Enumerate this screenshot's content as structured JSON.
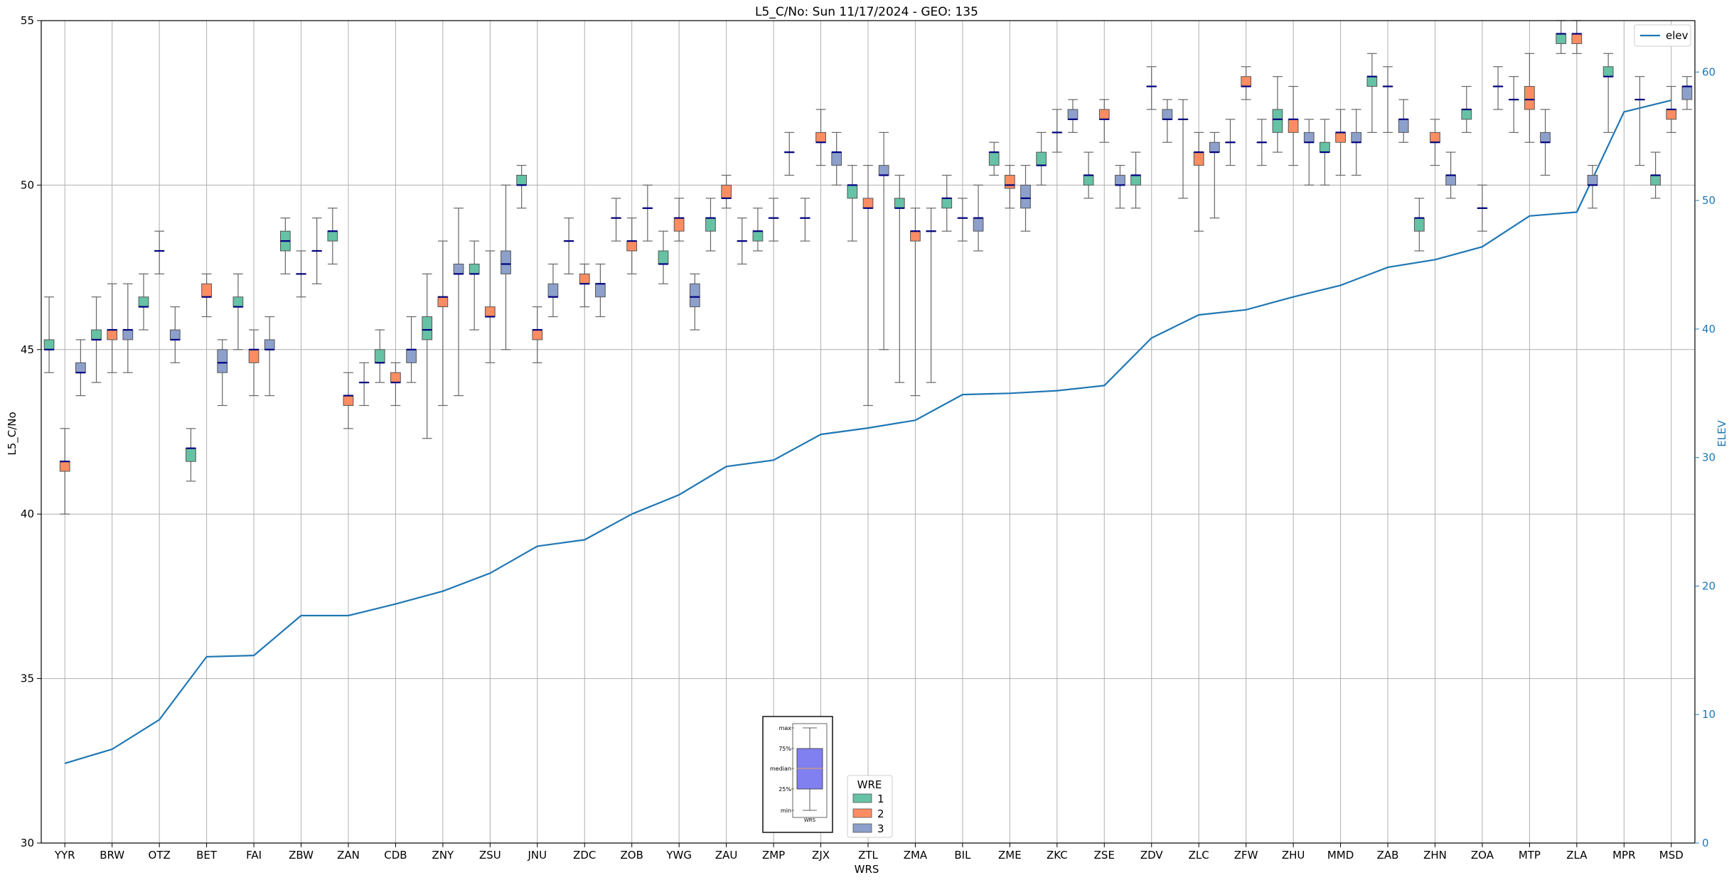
{
  "chart_data": {
    "type": "box",
    "title": "L5_C/No: Sun 11/17/2024 - GEO: 135",
    "xlabel": "WRS",
    "ylabel": "L5_C/No",
    "y2label": "ELEV",
    "ylim": [
      30,
      55
    ],
    "y2lim": [
      0,
      64
    ],
    "yticks": [
      30,
      35,
      40,
      45,
      50,
      55
    ],
    "y2ticks": [
      0,
      10,
      20,
      30,
      40,
      50,
      60
    ],
    "grid": true,
    "categories": [
      "YYR",
      "BRW",
      "OTZ",
      "BET",
      "FAI",
      "ZBW",
      "ZAN",
      "CDB",
      "ZNY",
      "ZSU",
      "JNU",
      "ZDC",
      "ZOB",
      "YWG",
      "ZAU",
      "ZMP",
      "ZJX",
      "ZTL",
      "ZMA",
      "BIL",
      "ZME",
      "ZKC",
      "ZSE",
      "ZDV",
      "ZLC",
      "ZFW",
      "ZHU",
      "MMD",
      "ZAB",
      "ZHN",
      "ZOA",
      "MTP",
      "ZLA",
      "MPR",
      "MSD"
    ],
    "wre_colors": {
      "1": "#66c2a5",
      "2": "#fc8d62",
      "3": "#8da0cb"
    },
    "legend_wre": {
      "title": "WRE",
      "items": [
        {
          "label": "1",
          "color": "#66c2a5"
        },
        {
          "label": "2",
          "color": "#fc8d62"
        },
        {
          "label": "3",
          "color": "#8da0cb"
        }
      ]
    },
    "legend_elev": {
      "label": "elev",
      "color": "#1f77b4"
    },
    "key_labels": [
      "max",
      "75%",
      "median",
      "25%",
      "min",
      "WRS"
    ],
    "elev_series": {
      "name": "elev",
      "color": "#1f77b4",
      "values": [
        6.2,
        7.3,
        9.6,
        14.5,
        14.6,
        17.7,
        17.7,
        18.6,
        19.6,
        21.0,
        23.1,
        23.6,
        25.6,
        27.1,
        29.3,
        29.8,
        31.8,
        32.3,
        32.9,
        34.9,
        35.0,
        35.2,
        35.6,
        39.3,
        41.1,
        41.5,
        42.5,
        43.4,
        44.8,
        45.4,
        46.4,
        48.8,
        49.1,
        56.9,
        57.8
      ]
    },
    "boxes": [
      {
        "wrs": "YYR",
        "wre": 1,
        "min": 44.3,
        "q1": 45.0,
        "med": 45.0,
        "q3": 45.3,
        "max": 46.6
      },
      {
        "wrs": "YYR",
        "wre": 2,
        "min": 40.0,
        "q1": 41.3,
        "med": 41.6,
        "q3": 41.6,
        "max": 42.6
      },
      {
        "wrs": "YYR",
        "wre": 3,
        "min": 43.6,
        "q1": 44.3,
        "med": 44.3,
        "q3": 44.6,
        "max": 45.3
      },
      {
        "wrs": "BRW",
        "wre": 1,
        "min": 44.0,
        "q1": 45.3,
        "med": 45.3,
        "q3": 45.6,
        "max": 46.6
      },
      {
        "wrs": "BRW",
        "wre": 2,
        "min": 44.3,
        "q1": 45.3,
        "med": 45.6,
        "q3": 45.6,
        "max": 47.0
      },
      {
        "wrs": "BRW",
        "wre": 3,
        "min": 44.3,
        "q1": 45.3,
        "med": 45.6,
        "q3": 45.6,
        "max": 47.0
      },
      {
        "wrs": "OTZ",
        "wre": 1,
        "min": 45.6,
        "q1": 46.3,
        "med": 46.3,
        "q3": 46.6,
        "max": 47.3
      },
      {
        "wrs": "OTZ",
        "wre": 2,
        "min": 47.3,
        "q1": 48.0,
        "med": 48.0,
        "q3": 48.0,
        "max": 48.6
      },
      {
        "wrs": "OTZ",
        "wre": 3,
        "min": 44.6,
        "q1": 45.3,
        "med": 45.3,
        "q3": 45.6,
        "max": 46.3
      },
      {
        "wrs": "BET",
        "wre": 1,
        "min": 41.0,
        "q1": 41.6,
        "med": 42.0,
        "q3": 42.0,
        "max": 42.6
      },
      {
        "wrs": "BET",
        "wre": 2,
        "min": 46.0,
        "q1": 46.6,
        "med": 46.6,
        "q3": 47.0,
        "max": 47.3
      },
      {
        "wrs": "BET",
        "wre": 3,
        "min": 43.3,
        "q1": 44.3,
        "med": 44.6,
        "q3": 45.0,
        "max": 45.3
      },
      {
        "wrs": "FAI",
        "wre": 1,
        "min": 45.0,
        "q1": 46.3,
        "med": 46.3,
        "q3": 46.6,
        "max": 47.3
      },
      {
        "wrs": "FAI",
        "wre": 2,
        "min": 43.6,
        "q1": 44.6,
        "med": 45.0,
        "q3": 45.0,
        "max": 45.6
      },
      {
        "wrs": "FAI",
        "wre": 3,
        "min": 43.6,
        "q1": 45.0,
        "med": 45.0,
        "q3": 45.3,
        "max": 46.0
      },
      {
        "wrs": "ZBW",
        "wre": 1,
        "min": 47.3,
        "q1": 48.0,
        "med": 48.3,
        "q3": 48.6,
        "max": 49.0
      },
      {
        "wrs": "ZBW",
        "wre": 2,
        "min": 46.6,
        "q1": 47.3,
        "med": 47.3,
        "q3": 47.3,
        "max": 48.0
      },
      {
        "wrs": "ZBW",
        "wre": 3,
        "min": 47.0,
        "q1": 48.0,
        "med": 48.0,
        "q3": 48.0,
        "max": 49.0
      },
      {
        "wrs": "ZAN",
        "wre": 1,
        "min": 47.6,
        "q1": 48.3,
        "med": 48.6,
        "q3": 48.6,
        "max": 49.3
      },
      {
        "wrs": "ZAN",
        "wre": 2,
        "min": 42.6,
        "q1": 43.3,
        "med": 43.6,
        "q3": 43.6,
        "max": 44.3
      },
      {
        "wrs": "ZAN",
        "wre": 3,
        "min": 43.3,
        "q1": 44.0,
        "med": 44.0,
        "q3": 44.0,
        "max": 44.6
      },
      {
        "wrs": "CDB",
        "wre": 1,
        "min": 44.0,
        "q1": 44.6,
        "med": 44.6,
        "q3": 45.0,
        "max": 45.6
      },
      {
        "wrs": "CDB",
        "wre": 2,
        "min": 43.3,
        "q1": 44.0,
        "med": 44.0,
        "q3": 44.3,
        "max": 44.6
      },
      {
        "wrs": "CDB",
        "wre": 3,
        "min": 44.0,
        "q1": 44.6,
        "med": 45.0,
        "q3": 45.0,
        "max": 46.0
      },
      {
        "wrs": "ZNY",
        "wre": 1,
        "min": 42.3,
        "q1": 45.3,
        "med": 45.6,
        "q3": 46.0,
        "max": 47.3
      },
      {
        "wrs": "ZNY",
        "wre": 2,
        "min": 43.3,
        "q1": 46.3,
        "med": 46.6,
        "q3": 46.6,
        "max": 48.3
      },
      {
        "wrs": "ZNY",
        "wre": 3,
        "min": 43.6,
        "q1": 47.3,
        "med": 47.3,
        "q3": 47.6,
        "max": 49.3
      },
      {
        "wrs": "ZSU",
        "wre": 1,
        "min": 45.6,
        "q1": 47.3,
        "med": 47.3,
        "q3": 47.6,
        "max": 48.3
      },
      {
        "wrs": "ZSU",
        "wre": 2,
        "min": 44.6,
        "q1": 46.0,
        "med": 46.0,
        "q3": 46.3,
        "max": 48.0
      },
      {
        "wrs": "ZSU",
        "wre": 3,
        "min": 45.0,
        "q1": 47.3,
        "med": 47.6,
        "q3": 48.0,
        "max": 50.0
      },
      {
        "wrs": "JNU",
        "wre": 1,
        "min": 49.3,
        "q1": 50.0,
        "med": 50.0,
        "q3": 50.3,
        "max": 50.6
      },
      {
        "wrs": "JNU",
        "wre": 2,
        "min": 44.6,
        "q1": 45.3,
        "med": 45.6,
        "q3": 45.6,
        "max": 46.3
      },
      {
        "wrs": "JNU",
        "wre": 3,
        "min": 46.0,
        "q1": 46.6,
        "med": 46.6,
        "q3": 47.0,
        "max": 47.6
      },
      {
        "wrs": "ZDC",
        "wre": 1,
        "min": 47.3,
        "q1": 48.3,
        "med": 48.3,
        "q3": 48.3,
        "max": 49.0
      },
      {
        "wrs": "ZDC",
        "wre": 2,
        "min": 46.3,
        "q1": 47.0,
        "med": 47.0,
        "q3": 47.3,
        "max": 47.6
      },
      {
        "wrs": "ZDC",
        "wre": 3,
        "min": 46.0,
        "q1": 46.6,
        "med": 47.0,
        "q3": 47.0,
        "max": 47.6
      },
      {
        "wrs": "ZOB",
        "wre": 1,
        "min": 48.3,
        "q1": 49.0,
        "med": 49.0,
        "q3": 49.0,
        "max": 49.6
      },
      {
        "wrs": "ZOB",
        "wre": 2,
        "min": 47.3,
        "q1": 48.0,
        "med": 48.3,
        "q3": 48.3,
        "max": 49.0
      },
      {
        "wrs": "ZOB",
        "wre": 3,
        "min": 48.3,
        "q1": 49.3,
        "med": 49.3,
        "q3": 49.3,
        "max": 50.0
      },
      {
        "wrs": "YWG",
        "wre": 1,
        "min": 47.0,
        "q1": 47.6,
        "med": 47.6,
        "q3": 48.0,
        "max": 48.6
      },
      {
        "wrs": "YWG",
        "wre": 2,
        "min": 48.3,
        "q1": 48.6,
        "med": 49.0,
        "q3": 49.0,
        "max": 49.6
      },
      {
        "wrs": "YWG",
        "wre": 3,
        "min": 45.6,
        "q1": 46.3,
        "med": 46.6,
        "q3": 47.0,
        "max": 47.3
      },
      {
        "wrs": "ZAU",
        "wre": 1,
        "min": 48.0,
        "q1": 48.6,
        "med": 49.0,
        "q3": 49.0,
        "max": 49.6
      },
      {
        "wrs": "ZAU",
        "wre": 2,
        "min": 49.3,
        "q1": 49.6,
        "med": 49.6,
        "q3": 50.0,
        "max": 50.3
      },
      {
        "wrs": "ZAU",
        "wre": 3,
        "min": 47.6,
        "q1": 48.3,
        "med": 48.3,
        "q3": 48.3,
        "max": 49.0
      },
      {
        "wrs": "ZMP",
        "wre": 1,
        "min": 48.0,
        "q1": 48.3,
        "med": 48.6,
        "q3": 48.6,
        "max": 49.3
      },
      {
        "wrs": "ZMP",
        "wre": 2,
        "min": 48.3,
        "q1": 49.0,
        "med": 49.0,
        "q3": 49.0,
        "max": 49.6
      },
      {
        "wrs": "ZMP",
        "wre": 3,
        "min": 50.3,
        "q1": 51.0,
        "med": 51.0,
        "q3": 51.0,
        "max": 51.6
      },
      {
        "wrs": "ZJX",
        "wre": 1,
        "min": 48.3,
        "q1": 49.0,
        "med": 49.0,
        "q3": 49.0,
        "max": 49.6
      },
      {
        "wrs": "ZJX",
        "wre": 2,
        "min": 50.6,
        "q1": 51.3,
        "med": 51.3,
        "q3": 51.6,
        "max": 52.3
      },
      {
        "wrs": "ZJX",
        "wre": 3,
        "min": 50.0,
        "q1": 50.6,
        "med": 51.0,
        "q3": 51.0,
        "max": 51.6
      },
      {
        "wrs": "ZTL",
        "wre": 1,
        "min": 48.3,
        "q1": 49.6,
        "med": 50.0,
        "q3": 50.0,
        "max": 50.6
      },
      {
        "wrs": "ZTL",
        "wre": 2,
        "min": 43.3,
        "q1": 49.3,
        "med": 49.3,
        "q3": 49.6,
        "max": 50.6
      },
      {
        "wrs": "ZTL",
        "wre": 3,
        "min": 45.0,
        "q1": 50.3,
        "med": 50.3,
        "q3": 50.6,
        "max": 51.6
      },
      {
        "wrs": "ZMA",
        "wre": 1,
        "min": 44.0,
        "q1": 49.3,
        "med": 49.3,
        "q3": 49.6,
        "max": 50.3
      },
      {
        "wrs": "ZMA",
        "wre": 2,
        "min": 43.6,
        "q1": 48.3,
        "med": 48.6,
        "q3": 48.6,
        "max": 49.3
      },
      {
        "wrs": "ZMA",
        "wre": 3,
        "min": 44.0,
        "q1": 48.6,
        "med": 48.6,
        "q3": 48.6,
        "max": 49.3
      },
      {
        "wrs": "BIL",
        "wre": 1,
        "min": 48.6,
        "q1": 49.3,
        "med": 49.6,
        "q3": 49.6,
        "max": 50.3
      },
      {
        "wrs": "BIL",
        "wre": 2,
        "min": 48.3,
        "q1": 49.0,
        "med": 49.0,
        "q3": 49.0,
        "max": 49.6
      },
      {
        "wrs": "BIL",
        "wre": 3,
        "min": 48.0,
        "q1": 48.6,
        "med": 49.0,
        "q3": 49.0,
        "max": 50.0
      },
      {
        "wrs": "ZME",
        "wre": 1,
        "min": 50.3,
        "q1": 50.6,
        "med": 51.0,
        "q3": 51.0,
        "max": 51.3
      },
      {
        "wrs": "ZME",
        "wre": 2,
        "min": 49.3,
        "q1": 49.9,
        "med": 50.0,
        "q3": 50.3,
        "max": 50.6
      },
      {
        "wrs": "ZME",
        "wre": 3,
        "min": 48.6,
        "q1": 49.3,
        "med": 49.6,
        "q3": 50.0,
        "max": 50.6
      },
      {
        "wrs": "ZKC",
        "wre": 1,
        "min": 50.0,
        "q1": 50.6,
        "med": 50.6,
        "q3": 51.0,
        "max": 51.6
      },
      {
        "wrs": "ZKC",
        "wre": 2,
        "min": 51.0,
        "q1": 51.6,
        "med": 51.6,
        "q3": 51.6,
        "max": 52.3
      },
      {
        "wrs": "ZKC",
        "wre": 3,
        "min": 51.6,
        "q1": 52.0,
        "med": 52.0,
        "q3": 52.3,
        "max": 52.6
      },
      {
        "wrs": "ZSE",
        "wre": 1,
        "min": 49.6,
        "q1": 50.0,
        "med": 50.3,
        "q3": 50.3,
        "max": 51.0
      },
      {
        "wrs": "ZSE",
        "wre": 2,
        "min": 51.3,
        "q1": 52.0,
        "med": 52.0,
        "q3": 52.3,
        "max": 52.6
      },
      {
        "wrs": "ZSE",
        "wre": 3,
        "min": 49.3,
        "q1": 50.0,
        "med": 50.0,
        "q3": 50.3,
        "max": 50.6
      },
      {
        "wrs": "ZDV",
        "wre": 1,
        "min": 49.3,
        "q1": 50.0,
        "med": 50.3,
        "q3": 50.3,
        "max": 51.0
      },
      {
        "wrs": "ZDV",
        "wre": 2,
        "min": 52.3,
        "q1": 53.0,
        "med": 53.0,
        "q3": 53.0,
        "max": 53.6
      },
      {
        "wrs": "ZDV",
        "wre": 3,
        "min": 51.3,
        "q1": 52.0,
        "med": 52.0,
        "q3": 52.3,
        "max": 52.6
      },
      {
        "wrs": "ZLC",
        "wre": 1,
        "min": 49.6,
        "q1": 52.0,
        "med": 52.0,
        "q3": 52.0,
        "max": 52.6
      },
      {
        "wrs": "ZLC",
        "wre": 2,
        "min": 48.6,
        "q1": 50.6,
        "med": 51.0,
        "q3": 51.0,
        "max": 51.6
      },
      {
        "wrs": "ZLC",
        "wre": 3,
        "min": 49.0,
        "q1": 51.0,
        "med": 51.0,
        "q3": 51.3,
        "max": 51.6
      },
      {
        "wrs": "ZFW",
        "wre": 1,
        "min": 50.6,
        "q1": 51.3,
        "med": 51.3,
        "q3": 51.3,
        "max": 52.0
      },
      {
        "wrs": "ZFW",
        "wre": 2,
        "min": 52.6,
        "q1": 53.0,
        "med": 53.0,
        "q3": 53.3,
        "max": 53.6
      },
      {
        "wrs": "ZFW",
        "wre": 3,
        "min": 50.6,
        "q1": 51.3,
        "med": 51.3,
        "q3": 51.3,
        "max": 52.0
      },
      {
        "wrs": "ZHU",
        "wre": 1,
        "min": 51.0,
        "q1": 51.6,
        "med": 52.0,
        "q3": 52.3,
        "max": 53.3
      },
      {
        "wrs": "ZHU",
        "wre": 2,
        "min": 50.6,
        "q1": 51.6,
        "med": 52.0,
        "q3": 52.0,
        "max": 53.0
      },
      {
        "wrs": "ZHU",
        "wre": 3,
        "min": 50.0,
        "q1": 51.3,
        "med": 51.3,
        "q3": 51.6,
        "max": 52.0
      },
      {
        "wrs": "MMD",
        "wre": 1,
        "min": 50.0,
        "q1": 51.0,
        "med": 51.0,
        "q3": 51.3,
        "max": 52.0
      },
      {
        "wrs": "MMD",
        "wre": 2,
        "min": 50.3,
        "q1": 51.3,
        "med": 51.6,
        "q3": 51.6,
        "max": 52.3
      },
      {
        "wrs": "MMD",
        "wre": 3,
        "min": 50.3,
        "q1": 51.3,
        "med": 51.3,
        "q3": 51.6,
        "max": 52.3
      },
      {
        "wrs": "ZAB",
        "wre": 1,
        "min": 51.6,
        "q1": 53.0,
        "med": 53.3,
        "q3": 53.3,
        "max": 54.0
      },
      {
        "wrs": "ZAB",
        "wre": 2,
        "min": 51.6,
        "q1": 53.0,
        "med": 53.0,
        "q3": 53.0,
        "max": 53.6
      },
      {
        "wrs": "ZAB",
        "wre": 3,
        "min": 51.3,
        "q1": 51.6,
        "med": 52.0,
        "q3": 52.0,
        "max": 52.6
      },
      {
        "wrs": "ZHN",
        "wre": 1,
        "min": 48.0,
        "q1": 48.6,
        "med": 49.0,
        "q3": 49.0,
        "max": 49.6
      },
      {
        "wrs": "ZHN",
        "wre": 2,
        "min": 50.6,
        "q1": 51.3,
        "med": 51.3,
        "q3": 51.6,
        "max": 52.0
      },
      {
        "wrs": "ZHN",
        "wre": 3,
        "min": 49.6,
        "q1": 50.0,
        "med": 50.3,
        "q3": 50.3,
        "max": 51.0
      },
      {
        "wrs": "ZOA",
        "wre": 1,
        "min": 51.6,
        "q1": 52.0,
        "med": 52.3,
        "q3": 52.3,
        "max": 53.0
      },
      {
        "wrs": "ZOA",
        "wre": 2,
        "min": 48.6,
        "q1": 49.3,
        "med": 49.3,
        "q3": 49.3,
        "max": 50.0
      },
      {
        "wrs": "ZOA",
        "wre": 3,
        "min": 52.3,
        "q1": 53.0,
        "med": 53.0,
        "q3": 53.0,
        "max": 53.6
      },
      {
        "wrs": "MTP",
        "wre": 1,
        "min": 51.6,
        "q1": 52.6,
        "med": 52.6,
        "q3": 52.6,
        "max": 53.3
      },
      {
        "wrs": "MTP",
        "wre": 2,
        "min": 51.3,
        "q1": 52.3,
        "med": 52.6,
        "q3": 53.0,
        "max": 54.0
      },
      {
        "wrs": "MTP",
        "wre": 3,
        "min": 50.3,
        "q1": 51.3,
        "med": 51.3,
        "q3": 51.6,
        "max": 52.3
      },
      {
        "wrs": "ZLA",
        "wre": 1,
        "min": 54.0,
        "q1": 54.3,
        "med": 54.6,
        "q3": 54.6,
        "max": 55.0
      },
      {
        "wrs": "ZLA",
        "wre": 2,
        "min": 54.0,
        "q1": 54.3,
        "med": 54.6,
        "q3": 54.6,
        "max": 55.0
      },
      {
        "wrs": "ZLA",
        "wre": 3,
        "min": 49.3,
        "q1": 50.0,
        "med": 50.0,
        "q3": 50.3,
        "max": 50.6
      },
      {
        "wrs": "MPR",
        "wre": 1,
        "min": 51.6,
        "q1": 53.3,
        "med": 53.3,
        "q3": 53.6,
        "max": 54.0
      },
      {
        "wrs": "MPR",
        "wre": 3,
        "min": 50.6,
        "q1": 52.6,
        "med": 52.6,
        "q3": 52.6,
        "max": 53.3
      },
      {
        "wrs": "MSD",
        "wre": 1,
        "min": 49.6,
        "q1": 50.0,
        "med": 50.3,
        "q3": 50.3,
        "max": 51.0
      },
      {
        "wrs": "MSD",
        "wre": 2,
        "min": 51.6,
        "q1": 52.0,
        "med": 52.3,
        "q3": 52.3,
        "max": 53.0
      },
      {
        "wrs": "MSD",
        "wre": 3,
        "min": 52.3,
        "q1": 52.6,
        "med": 53.0,
        "q3": 53.0,
        "max": 53.3
      }
    ]
  }
}
